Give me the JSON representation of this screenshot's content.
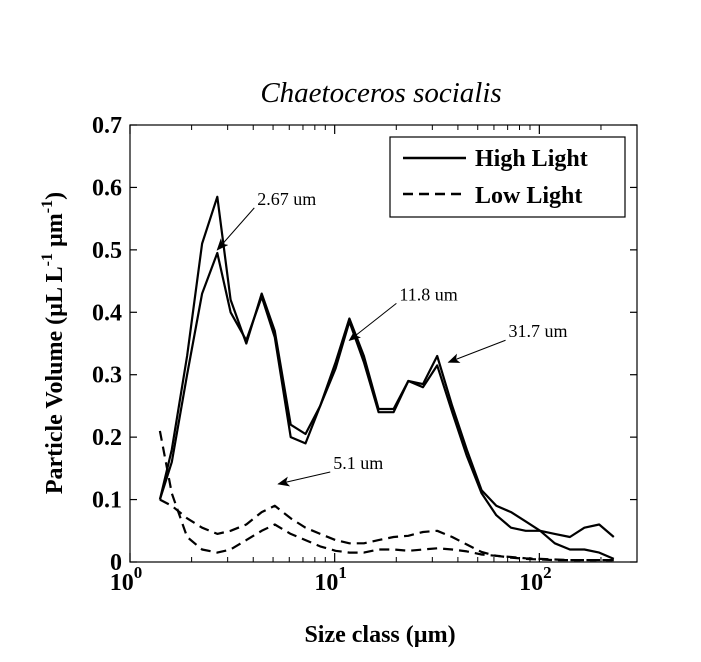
{
  "chart_data": {
    "type": "line",
    "title": "Chaetoceros socialis",
    "xlabel": "Size class (µm)",
    "ylabel": "Particle Volume (µL L",
    "ylabel_sup1": "-1",
    "ylabel_mid": " µm",
    "ylabel_sup2": "-1",
    "ylabel_end": ")",
    "xscale": "log",
    "xlim": [
      1,
      300
    ],
    "ylim": [
      0,
      0.7
    ],
    "xticks": [
      {
        "value": 1,
        "base": "10",
        "exp": "0"
      },
      {
        "value": 10,
        "base": "10",
        "exp": "1"
      },
      {
        "value": 100,
        "base": "10",
        "exp": "2"
      }
    ],
    "yticks": [
      0,
      0.1,
      0.2,
      0.3,
      0.4,
      0.5,
      0.6,
      0.7
    ],
    "ytick_labels": [
      "0",
      "0.1",
      "0.2",
      "0.3",
      "0.4",
      "0.5",
      "0.6",
      "0.7"
    ],
    "grid": false,
    "legend_position": "top-right",
    "legend": [
      {
        "label": "High Light",
        "style": "solid"
      },
      {
        "label": "Low Light",
        "style": "dashed"
      }
    ],
    "series": [
      {
        "style": "solid",
        "x": [
          1.4,
          1.6,
          1.9,
          2.25,
          2.67,
          3.1,
          3.7,
          4.4,
          5.1,
          6.1,
          7.2,
          8.5,
          10.1,
          11.8,
          13.9,
          16.4,
          19.4,
          22.9,
          27.0,
          31.7,
          37.5,
          44.2,
          52.2,
          61.6,
          72.7,
          85.8,
          101,
          119,
          141,
          166,
          196,
          231
        ],
        "values": [
          0.1,
          0.18,
          0.33,
          0.51,
          0.585,
          0.42,
          0.35,
          0.43,
          0.37,
          0.22,
          0.205,
          0.25,
          0.32,
          0.39,
          0.33,
          0.245,
          0.245,
          0.29,
          0.285,
          0.33,
          0.25,
          0.18,
          0.115,
          0.09,
          0.08,
          0.065,
          0.05,
          0.045,
          0.04,
          0.055,
          0.06,
          0.04
        ]
      },
      {
        "style": "solid",
        "x": [
          1.4,
          1.6,
          1.9,
          2.25,
          2.67,
          3.1,
          3.7,
          4.4,
          5.1,
          6.1,
          7.2,
          8.5,
          10.1,
          11.8,
          13.9,
          16.4,
          19.4,
          22.9,
          27.0,
          31.7,
          37.5,
          44.2,
          52.2,
          61.6,
          72.7,
          85.8,
          101,
          119,
          141,
          166,
          196,
          231
        ],
        "values": [
          0.1,
          0.16,
          0.3,
          0.43,
          0.495,
          0.4,
          0.355,
          0.425,
          0.36,
          0.2,
          0.19,
          0.25,
          0.31,
          0.385,
          0.32,
          0.24,
          0.24,
          0.29,
          0.28,
          0.315,
          0.24,
          0.17,
          0.11,
          0.075,
          0.055,
          0.05,
          0.05,
          0.03,
          0.02,
          0.02,
          0.015,
          0.005
        ]
      },
      {
        "style": "dashed",
        "x": [
          1.4,
          1.6,
          1.9,
          2.25,
          2.67,
          3.1,
          3.7,
          4.4,
          5.1,
          6.1,
          7.2,
          8.5,
          10.1,
          11.8,
          13.9,
          16.4,
          19.4,
          22.9,
          27.0,
          31.7,
          37.5,
          44.2,
          52.2,
          61.6,
          72.7,
          85.8,
          101,
          119,
          141,
          166,
          196,
          231
        ],
        "values": [
          0.21,
          0.11,
          0.04,
          0.02,
          0.015,
          0.02,
          0.035,
          0.05,
          0.06,
          0.045,
          0.035,
          0.025,
          0.018,
          0.015,
          0.015,
          0.02,
          0.02,
          0.018,
          0.02,
          0.022,
          0.02,
          0.017,
          0.012,
          0.01,
          0.008,
          0.006,
          0.005,
          0.004,
          0.003,
          0.003,
          0.003,
          0.003
        ]
      },
      {
        "style": "dashed",
        "x": [
          1.4,
          1.6,
          1.9,
          2.25,
          2.67,
          3.1,
          3.7,
          4.4,
          5.1,
          6.1,
          7.2,
          8.5,
          10.1,
          11.8,
          13.9,
          16.4,
          19.4,
          22.9,
          27.0,
          31.7,
          37.5,
          44.2,
          52.2,
          61.6,
          72.7,
          85.8,
          101,
          119,
          141,
          166,
          196,
          231
        ],
        "values": [
          0.1,
          0.09,
          0.07,
          0.055,
          0.045,
          0.05,
          0.06,
          0.08,
          0.09,
          0.07,
          0.055,
          0.045,
          0.035,
          0.03,
          0.03,
          0.035,
          0.04,
          0.042,
          0.048,
          0.05,
          0.04,
          0.028,
          0.016,
          0.01,
          0.007,
          0.005,
          0.004,
          0.003,
          0.003,
          0.003,
          0.003,
          0.003
        ]
      }
    ],
    "annotations": [
      {
        "text": "2.67 um",
        "x": 2.67,
        "y": 0.5
      },
      {
        "text": "11.8 um",
        "x": 11.8,
        "y": 0.355
      },
      {
        "text": "31.7 um",
        "x": 36,
        "y": 0.32
      },
      {
        "text": "5.1 um",
        "x": 5.3,
        "y": 0.125
      }
    ]
  }
}
